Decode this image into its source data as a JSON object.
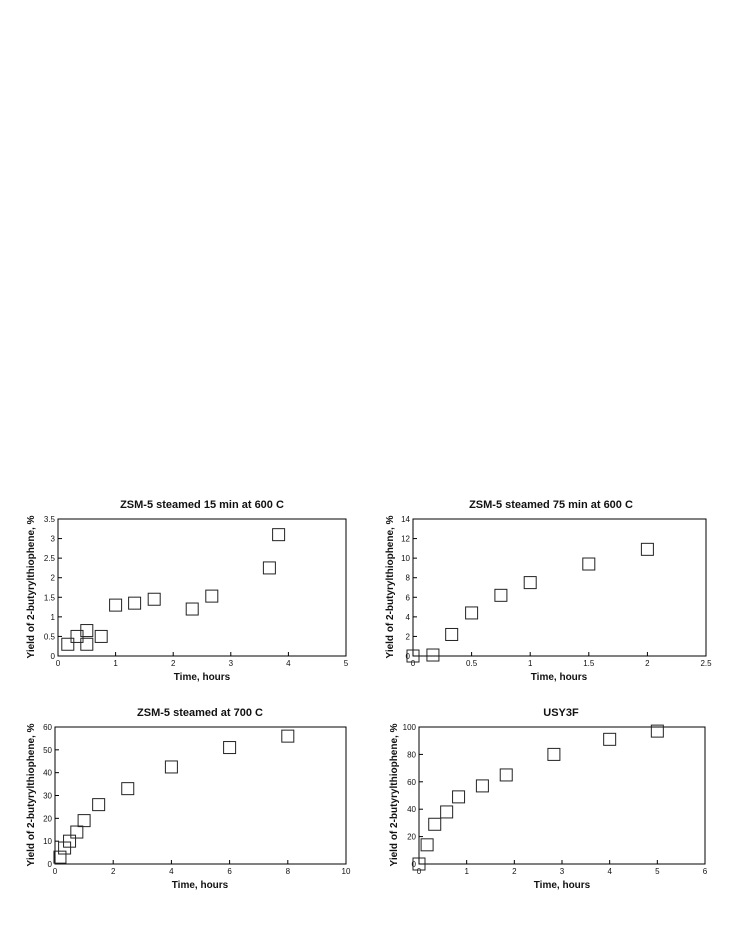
{
  "chart_data": [
    {
      "type": "scatter",
      "title": "ZSM-5 steamed 15 min at 600 C",
      "xlabel": "Time, hours",
      "ylabel": "Yield of 2-butyrylthiophene, %",
      "xlim": [
        0,
        5
      ],
      "ylim": [
        0,
        3.5
      ],
      "xticks": [
        "0",
        "1",
        "2",
        "3",
        "4",
        "5"
      ],
      "yticks": [
        "0",
        "0.5",
        "1",
        "1.5",
        "2",
        "2.5",
        "3",
        "3.5"
      ],
      "marker": "open-square",
      "grid": false,
      "points": [
        {
          "x": 0.17,
          "y": 0.3
        },
        {
          "x": 0.33,
          "y": 0.5
        },
        {
          "x": 0.5,
          "y": 0.3
        },
        {
          "x": 0.5,
          "y": 0.65
        },
        {
          "x": 0.75,
          "y": 0.5
        },
        {
          "x": 1.0,
          "y": 1.3
        },
        {
          "x": 1.33,
          "y": 1.35
        },
        {
          "x": 1.67,
          "y": 1.45
        },
        {
          "x": 2.33,
          "y": 1.2
        },
        {
          "x": 2.67,
          "y": 1.53
        },
        {
          "x": 3.67,
          "y": 2.25
        },
        {
          "x": 3.83,
          "y": 3.1
        }
      ]
    },
    {
      "type": "scatter",
      "title": "ZSM-5 steamed 75 min at 600 C",
      "xlabel": "Time, hours",
      "ylabel": "Yield of 2-butyrylthiophene, %",
      "xlim": [
        0,
        2.5
      ],
      "ylim": [
        0,
        14
      ],
      "xticks": [
        "0",
        "0.5",
        "1",
        "1.5",
        "2",
        "2.5"
      ],
      "yticks": [
        "0",
        "2",
        "4",
        "6",
        "8",
        "10",
        "12",
        "14"
      ],
      "marker": "open-square",
      "grid": false,
      "points": [
        {
          "x": 0.0,
          "y": 0.0
        },
        {
          "x": 0.17,
          "y": 0.1
        },
        {
          "x": 0.33,
          "y": 2.2
        },
        {
          "x": 0.5,
          "y": 4.4
        },
        {
          "x": 0.75,
          "y": 6.2
        },
        {
          "x": 1.0,
          "y": 7.5
        },
        {
          "x": 1.5,
          "y": 9.4
        },
        {
          "x": 2.0,
          "y": 10.9
        }
      ]
    },
    {
      "type": "scatter",
      "title": "ZSM-5 steamed at 700 C",
      "xlabel": "Time, hours",
      "ylabel": "Yield of 2-butyrylthiophene, %",
      "xlim": [
        0,
        10
      ],
      "ylim": [
        0,
        60
      ],
      "xticks": [
        "0",
        "2",
        "4",
        "6",
        "8",
        "10"
      ],
      "yticks": [
        "0",
        "10",
        "20",
        "30",
        "40",
        "50",
        "60"
      ],
      "marker": "open-square",
      "grid": false,
      "points": [
        {
          "x": 0.17,
          "y": 3
        },
        {
          "x": 0.33,
          "y": 7
        },
        {
          "x": 0.5,
          "y": 10
        },
        {
          "x": 0.75,
          "y": 14
        },
        {
          "x": 1.0,
          "y": 19
        },
        {
          "x": 1.5,
          "y": 26
        },
        {
          "x": 2.5,
          "y": 33
        },
        {
          "x": 4.0,
          "y": 42.5
        },
        {
          "x": 6.0,
          "y": 51
        },
        {
          "x": 8.0,
          "y": 56
        }
      ]
    },
    {
      "type": "scatter",
      "title": "USY3F",
      "xlabel": "Time, hours",
      "ylabel": "Yield of 2-butyrylthiophene, %",
      "xlim": [
        0,
        6
      ],
      "ylim": [
        0,
        100
      ],
      "xticks": [
        "0",
        "1",
        "2",
        "3",
        "4",
        "5",
        "6"
      ],
      "yticks": [
        "0",
        "20",
        "40",
        "60",
        "80",
        "100"
      ],
      "marker": "open-square",
      "grid": false,
      "points": [
        {
          "x": 0.0,
          "y": 0
        },
        {
          "x": 0.17,
          "y": 14
        },
        {
          "x": 0.33,
          "y": 29
        },
        {
          "x": 0.58,
          "y": 38
        },
        {
          "x": 0.83,
          "y": 49
        },
        {
          "x": 1.33,
          "y": 57
        },
        {
          "x": 1.83,
          "y": 65
        },
        {
          "x": 2.83,
          "y": 80
        },
        {
          "x": 4.0,
          "y": 91
        },
        {
          "x": 5.0,
          "y": 97
        }
      ]
    }
  ]
}
